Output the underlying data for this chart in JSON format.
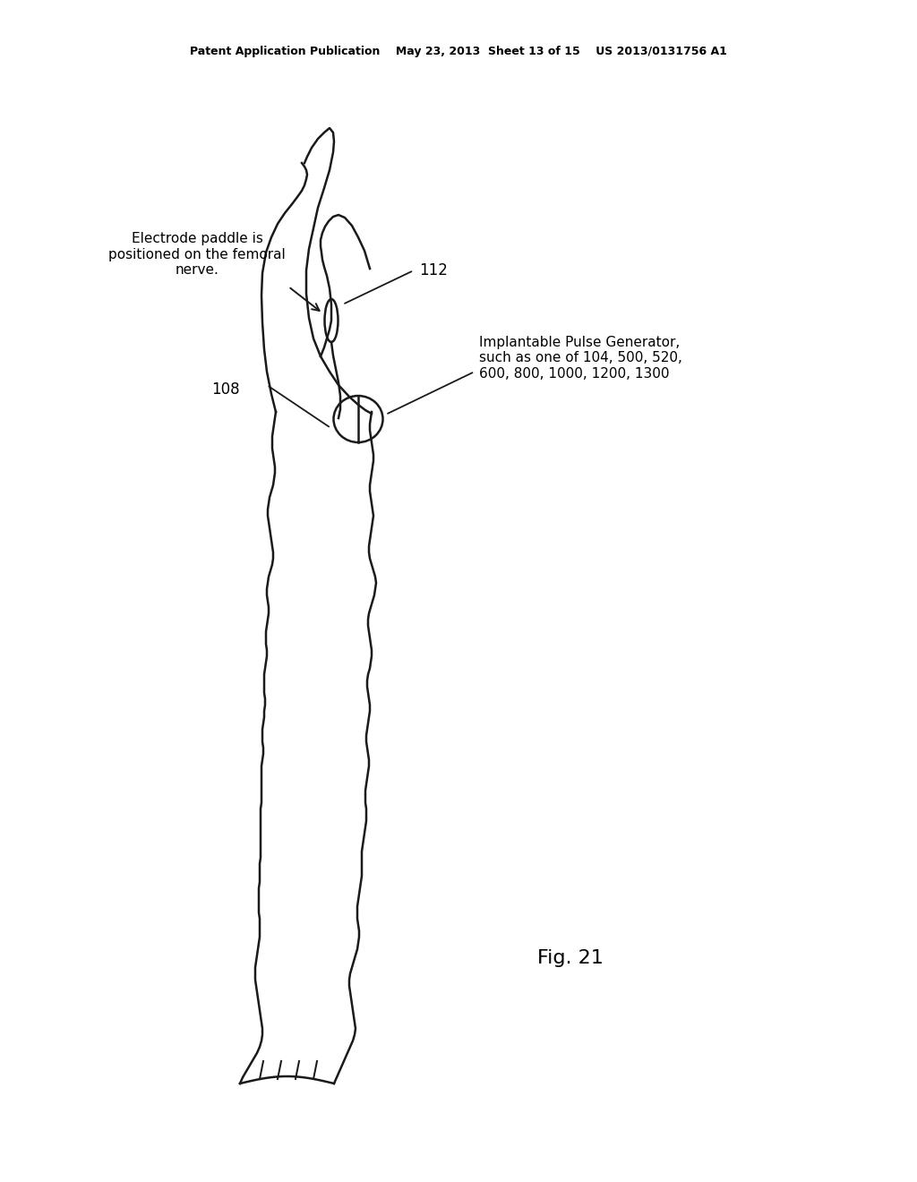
{
  "bg_color": "#ffffff",
  "line_color": "#1a1a1a",
  "text_color": "#000000",
  "header_text": "Patent Application Publication    May 23, 2013  Sheet 13 of 15    US 2013/0131756 A1",
  "fig_label": "Fig. 21",
  "label_112": "112",
  "label_108": "108",
  "label_electrode": "Electrode paddle is\npositioned on the femoral\nnerve.",
  "label_ipg": "Implantable Pulse Generator,\nsuch as one of 104, 500, 520,\n600, 800, 1000, 1200, 1300"
}
